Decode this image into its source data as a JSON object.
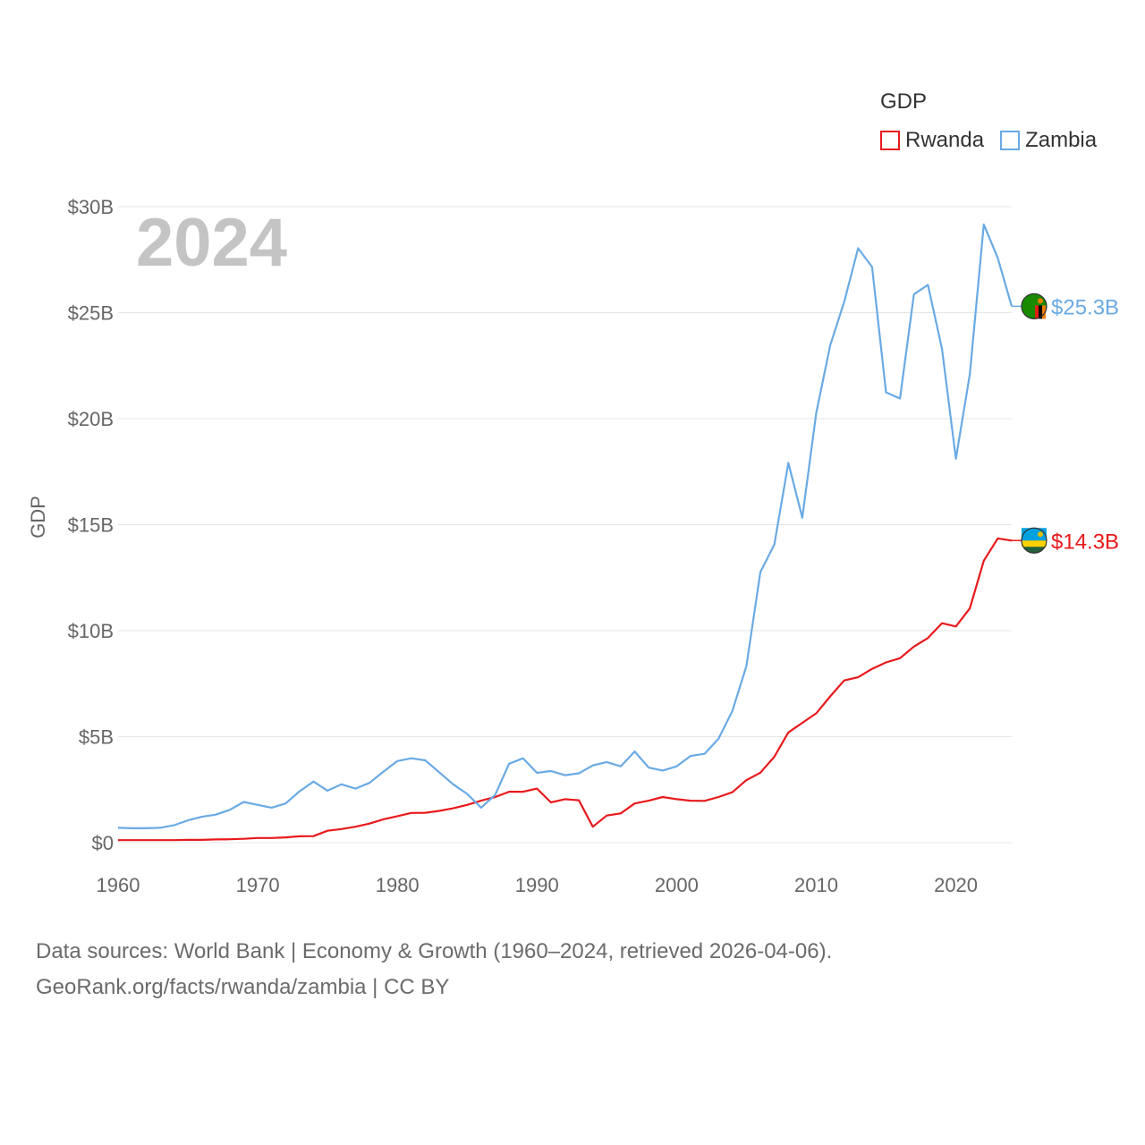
{
  "legend": {
    "title": "GDP",
    "items": [
      {
        "name": "Rwanda",
        "color": "#e8191c"
      },
      {
        "name": "Zambia",
        "color": "#6aaae4"
      }
    ]
  },
  "year_label": "2024",
  "footer": {
    "line1": "Data sources: World Bank | Economy & Growth (1960–2024, retrieved 2026-04-06).",
    "line2": "GeoRank.org/facts/rwanda/zambia | CC BY"
  },
  "chart_data": {
    "type": "line",
    "title": "GDP",
    "xlabel": "",
    "ylabel": "GDP",
    "xlim": [
      1960,
      2024
    ],
    "ylim": [
      0,
      30
    ],
    "x_ticks": [
      1960,
      1970,
      1980,
      1990,
      2000,
      2010,
      2020
    ],
    "y_ticks": [
      0,
      5,
      10,
      15,
      20,
      25,
      30
    ],
    "y_tick_labels": [
      "$0",
      "$5B",
      "$10B",
      "$15B",
      "$20B",
      "$25B",
      "$30B"
    ],
    "grid": true,
    "units": "USD billions",
    "x": [
      1960,
      1961,
      1962,
      1963,
      1964,
      1965,
      1966,
      1967,
      1968,
      1969,
      1970,
      1971,
      1972,
      1973,
      1974,
      1975,
      1976,
      1977,
      1978,
      1979,
      1980,
      1981,
      1982,
      1983,
      1984,
      1985,
      1986,
      1987,
      1988,
      1989,
      1990,
      1991,
      1992,
      1993,
      1994,
      1995,
      1996,
      1997,
      1998,
      1999,
      2000,
      2001,
      2002,
      2003,
      2004,
      2005,
      2006,
      2007,
      2008,
      2009,
      2010,
      2011,
      2012,
      2013,
      2014,
      2015,
      2016,
      2017,
      2018,
      2019,
      2020,
      2021,
      2022,
      2023,
      2024
    ],
    "series": [
      {
        "name": "Rwanda",
        "color": "#e8191c",
        "end_label": "$14.3B",
        "values": [
          0.12,
          0.12,
          0.12,
          0.12,
          0.12,
          0.13,
          0.13,
          0.15,
          0.16,
          0.18,
          0.22,
          0.22,
          0.25,
          0.3,
          0.31,
          0.56,
          0.64,
          0.75,
          0.9,
          1.1,
          1.25,
          1.4,
          1.41,
          1.5,
          1.62,
          1.78,
          1.98,
          2.15,
          2.4,
          2.4,
          2.55,
          1.9,
          2.05,
          2.0,
          0.75,
          1.28,
          1.38,
          1.85,
          1.98,
          2.15,
          2.05,
          1.98,
          1.97,
          2.15,
          2.38,
          2.95,
          3.3,
          4.05,
          5.2,
          5.65,
          6.1,
          6.9,
          7.65,
          7.8,
          8.2,
          8.5,
          8.7,
          9.25,
          9.65,
          10.35,
          10.2,
          11.05,
          13.3,
          14.35,
          14.25
        ]
      },
      {
        "name": "Zambia",
        "color": "#6aaae4",
        "end_label": "$25.3B",
        "values": [
          0.7,
          0.68,
          0.68,
          0.7,
          0.82,
          1.05,
          1.22,
          1.32,
          1.55,
          1.92,
          1.78,
          1.65,
          1.85,
          2.42,
          2.88,
          2.45,
          2.75,
          2.55,
          2.82,
          3.35,
          3.85,
          3.98,
          3.88,
          3.32,
          2.75,
          2.3,
          1.65,
          2.25,
          3.72,
          3.98,
          3.29,
          3.38,
          3.18,
          3.27,
          3.64,
          3.8,
          3.6,
          4.3,
          3.54,
          3.4,
          3.6,
          4.09,
          4.19,
          4.9,
          6.22,
          8.33,
          12.76,
          14.06,
          17.91,
          15.33,
          20.27,
          23.46,
          25.5,
          28.04,
          27.15,
          21.24,
          20.95,
          25.87,
          26.31,
          23.31,
          18.11,
          22.1,
          29.16,
          27.58,
          25.3
        ]
      }
    ]
  }
}
